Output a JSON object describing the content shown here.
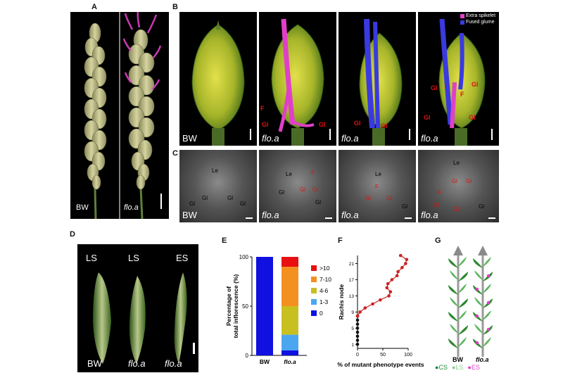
{
  "panels": {
    "A": "A",
    "B": "B",
    "C": "C",
    "D": "D",
    "E": "E",
    "F": "F",
    "G": "G"
  },
  "panelA": {
    "left": "BW",
    "right": "flo.a"
  },
  "panelB": {
    "legend": [
      "Extra spikelet",
      "Fused glume"
    ],
    "legend_colors": [
      "#e040c8",
      "#3a3ae0"
    ],
    "photo_labels": [
      "BW",
      "flo.a",
      "flo.a",
      "flo.a"
    ],
    "gl": "Gl",
    "f": "F"
  },
  "panelC": {
    "photo_labels": [
      "BW",
      "flo.a",
      "flo.a",
      "flo.a"
    ],
    "le": "Le",
    "gl": "Gl",
    "f": "F"
  },
  "panelD": {
    "top_labels": [
      "LS",
      "LS",
      "ES"
    ],
    "bottom_labels": [
      "BW",
      "flo.a",
      "flo.a"
    ]
  },
  "chart_data": [
    {
      "panel": "E",
      "type": "bar",
      "stacked": true,
      "categories": [
        "BW",
        "flo.a"
      ],
      "ylabel": "Percentage of total inflorescence (%)",
      "ylim": [
        0,
        100
      ],
      "yticks": [
        0,
        50,
        100
      ],
      "legend_position": "right",
      "series": [
        {
          "name": "0",
          "color": "#1010e0",
          "values": [
            100,
            5
          ]
        },
        {
          "name": "1-3",
          "color": "#4aa6ef",
          "values": [
            0,
            16
          ]
        },
        {
          "name": "4-6",
          "color": "#c8c020",
          "values": [
            0,
            29
          ]
        },
        {
          "name": "7-10",
          "color": "#f49020",
          "values": [
            0,
            40
          ]
        },
        {
          "name": ">10",
          "color": "#e81010",
          "values": [
            0,
            10
          ]
        }
      ],
      "legend_order": [
        ">10",
        "7-10",
        "4-6",
        "1-3",
        "0"
      ]
    },
    {
      "panel": "F",
      "type": "line",
      "xlabel": "% of mutant phenotype events",
      "ylabel": "Rachis node",
      "xlim": [
        0,
        100
      ],
      "ylim": [
        0,
        23
      ],
      "xticks": [
        0,
        50,
        100
      ],
      "yticks": [
        1,
        5,
        9,
        13,
        17,
        21
      ],
      "series": [
        {
          "color": "#111111",
          "points": [
            [
              0,
              1
            ],
            [
              0,
              2
            ],
            [
              0,
              3
            ],
            [
              0,
              4
            ],
            [
              0,
              5
            ],
            [
              0,
              6
            ],
            [
              0,
              7
            ],
            [
              0,
              8
            ]
          ]
        },
        {
          "color": "#cc2222",
          "points": [
            [
              0,
              8
            ],
            [
              5,
              9
            ],
            [
              15,
              10
            ],
            [
              30,
              11
            ],
            [
              45,
              12
            ],
            [
              62,
              13
            ],
            [
              65,
              14
            ],
            [
              58,
              15
            ],
            [
              60,
              16
            ],
            [
              68,
              17
            ],
            [
              78,
              18
            ],
            [
              80,
              19
            ],
            [
              88,
              20
            ],
            [
              95,
              21
            ],
            [
              97,
              22
            ],
            [
              85,
              23
            ]
          ]
        }
      ]
    }
  ],
  "panelG": {
    "x_labels": [
      "BW",
      "flo.a"
    ],
    "legend": [
      {
        "dot": "●",
        "label": "CS",
        "color": "#1a8a3a"
      },
      {
        "dot": "●",
        "label": "LS",
        "color": "#8cc88c"
      },
      {
        "dot": "●",
        "label": "ES",
        "color": "#e040c8"
      }
    ]
  }
}
